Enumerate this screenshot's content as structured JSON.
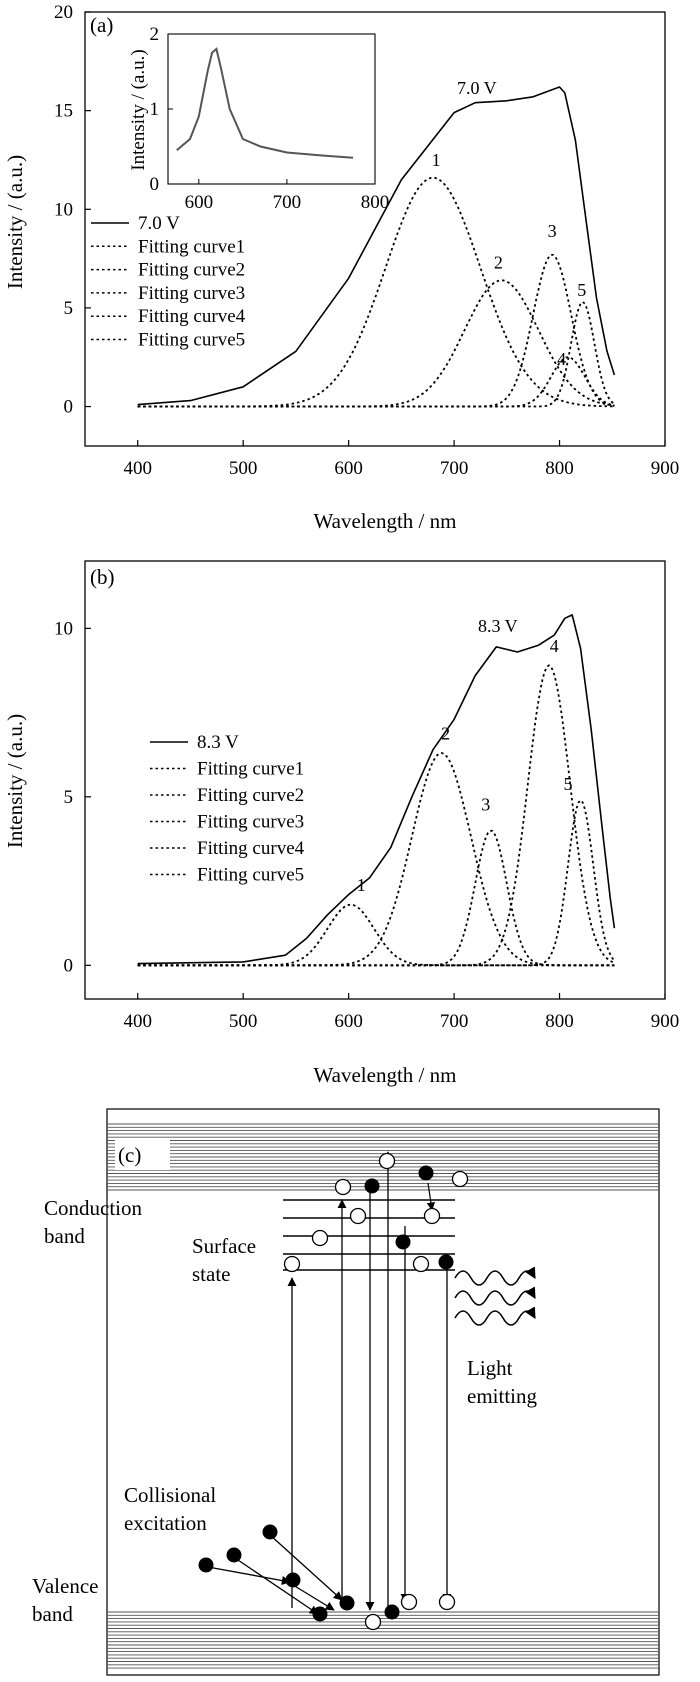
{
  "chart_data": [
    {
      "type": "line",
      "panel_label": "(a)",
      "xlabel": "Wavelength / nm",
      "ylabel": "Intensity / (a.u.)",
      "xlim": [
        350,
        900
      ],
      "ylim": [
        -2,
        20
      ],
      "x_ticks": [
        "400",
        "500",
        "600",
        "700",
        "800",
        "900"
      ],
      "y_ticks": [
        "0",
        "5",
        "10",
        "15",
        "20"
      ],
      "curve_label": "7.0 V",
      "legend_placement": "left",
      "legend": [
        "7.0 V",
        "Fitting curve1",
        "Fitting curve2",
        "Fitting curve3",
        "Fitting curve4",
        "Fitting curve5"
      ],
      "series": [
        {
          "name": "7.0 V",
          "style": "solid",
          "x": [
            400,
            450,
            500,
            550,
            600,
            650,
            700,
            720,
            750,
            775,
            790,
            800,
            805,
            815,
            825,
            835,
            845,
            852
          ],
          "y": [
            0.1,
            0.3,
            1.0,
            2.8,
            6.5,
            11.5,
            14.9,
            15.4,
            15.5,
            15.7,
            16.0,
            16.2,
            15.9,
            13.5,
            9.5,
            5.5,
            2.8,
            1.6
          ]
        },
        {
          "name": "Fitting curve1",
          "style": "dotted",
          "peak": 680,
          "height": 11.6,
          "sigma": 45
        },
        {
          "name": "Fitting curve2",
          "style": "dotted",
          "peak": 745,
          "height": 6.4,
          "sigma": 35
        },
        {
          "name": "Fitting curve3",
          "style": "dotted",
          "peak": 793,
          "height": 7.7,
          "sigma": 18
        },
        {
          "name": "Fitting curve4",
          "style": "dotted",
          "peak": 808,
          "height": 2.5,
          "sigma": 16
        },
        {
          "name": "Fitting curve5",
          "style": "dotted",
          "peak": 822,
          "height": 5.3,
          "sigma": 11
        }
      ],
      "peak_labels": [
        "1",
        "2",
        "3",
        "4",
        "5"
      ],
      "peak_label_points": [
        [
          683,
          12.2
        ],
        [
          742,
          7.0
        ],
        [
          793,
          8.6
        ],
        [
          802,
          2.1
        ],
        [
          821,
          5.6
        ]
      ],
      "inset": {
        "xlabel": "",
        "ylabel": "Intensity / (a.u.)",
        "xlim": [
          565,
          800
        ],
        "ylim": [
          0,
          2
        ],
        "x_ticks": [
          "600",
          "700",
          "800"
        ],
        "y_ticks": [
          "0",
          "1",
          "2"
        ],
        "x": [
          575,
          590,
          600,
          610,
          615,
          620,
          625,
          635,
          650,
          670,
          700,
          740,
          775
        ],
        "y": [
          0.45,
          0.6,
          0.9,
          1.5,
          1.75,
          1.8,
          1.55,
          1.0,
          0.6,
          0.5,
          0.42,
          0.38,
          0.35
        ]
      }
    },
    {
      "type": "line",
      "panel_label": "(b)",
      "xlabel": "Wavelength / nm",
      "ylabel": "Intensity / (a.u.)",
      "xlim": [
        350,
        900
      ],
      "ylim": [
        -1,
        12
      ],
      "x_ticks": [
        "400",
        "500",
        "600",
        "700",
        "800",
        "900"
      ],
      "y_ticks": [
        "0",
        "5",
        "10"
      ],
      "curve_label": "8.3 V",
      "legend_placement": "left",
      "legend": [
        "8.3 V",
        "Fitting curve1",
        "Fitting curve2",
        "Fitting curve3",
        "Fitting curve4",
        "Fitting curve5"
      ],
      "series": [
        {
          "name": "8.3 V",
          "style": "solid",
          "x": [
            400,
            500,
            540,
            560,
            580,
            600,
            620,
            640,
            660,
            680,
            700,
            720,
            740,
            760,
            780,
            795,
            805,
            812,
            820,
            830,
            840,
            848,
            852
          ],
          "y": [
            0.05,
            0.1,
            0.3,
            0.8,
            1.5,
            2.1,
            2.6,
            3.5,
            5.0,
            6.4,
            7.3,
            8.6,
            9.45,
            9.3,
            9.5,
            9.8,
            10.3,
            10.4,
            9.4,
            7.0,
            4.2,
            2.0,
            1.1
          ]
        },
        {
          "name": "Fitting curve1",
          "style": "dotted",
          "peak": 602,
          "height": 1.8,
          "sigma": 22
        },
        {
          "name": "Fitting curve2",
          "style": "dotted",
          "peak": 688,
          "height": 6.3,
          "sigma": 28
        },
        {
          "name": "Fitting curve3",
          "style": "dotted",
          "peak": 735,
          "height": 4.0,
          "sigma": 15
        },
        {
          "name": "Fitting curve4",
          "style": "dotted",
          "peak": 790,
          "height": 8.9,
          "sigma": 20
        },
        {
          "name": "Fitting curve5",
          "style": "dotted",
          "peak": 820,
          "height": 4.9,
          "sigma": 12
        }
      ],
      "peak_labels": [
        "1",
        "2",
        "3",
        "4",
        "5"
      ],
      "peak_label_points": [
        [
          612,
          2.2
        ],
        [
          692,
          6.7
        ],
        [
          730,
          4.6
        ],
        [
          795,
          9.3
        ],
        [
          808,
          5.2
        ]
      ]
    }
  ],
  "diagram": {
    "panel_label": "(c)",
    "labels": {
      "conduction": [
        "Conduction",
        "band"
      ],
      "surface": [
        "Surface",
        "state"
      ],
      "light": [
        "Light",
        "emitting"
      ],
      "collisional": [
        "Collisional",
        "excitation"
      ],
      "valence": [
        "Valence",
        "band"
      ]
    }
  }
}
